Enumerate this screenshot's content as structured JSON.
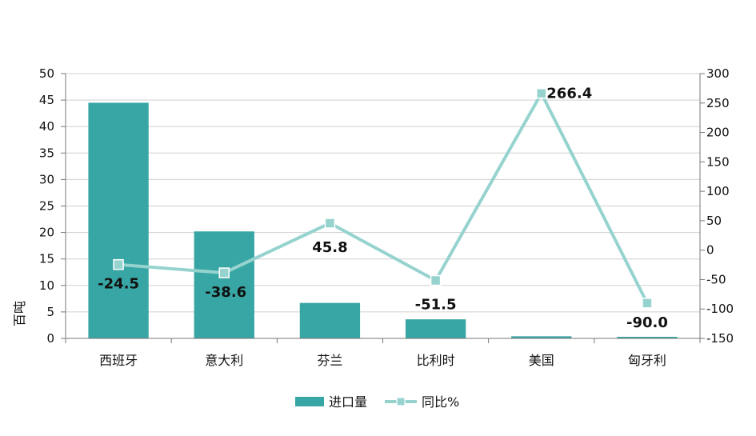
{
  "chart_data": {
    "type": "bar",
    "title": "",
    "categories": [
      "西班牙",
      "意大利",
      "芬兰",
      "比利时",
      "美国",
      "匈牙利"
    ],
    "series": [
      {
        "name": "进口量",
        "type": "bar",
        "axis": "left",
        "color": "#38a6a4",
        "values": [
          44.5,
          20.2,
          6.7,
          3.6,
          0.4,
          0.3
        ]
      },
      {
        "name": "同比%",
        "type": "line",
        "axis": "right",
        "color": "#96d3cf",
        "values": [
          -24.5,
          -38.6,
          45.8,
          -51.5,
          266.4,
          -90.0
        ],
        "labels": [
          "-24.5",
          "-38.6",
          "45.8",
          "-51.5",
          "266.4",
          "-90.0"
        ]
      }
    ],
    "ylabel": "百吨",
    "ylim": [
      0,
      50
    ],
    "yticks": [
      "0",
      "5",
      "10",
      "15",
      "20",
      "25",
      "30",
      "35",
      "40",
      "45",
      "50"
    ],
    "y2lim": [
      -150,
      300
    ],
    "y2ticks": [
      "-150",
      "-100",
      "-50",
      "0",
      "50",
      "100",
      "150",
      "200",
      "250",
      "300"
    ],
    "grid": true,
    "legend_position": "bottom"
  }
}
